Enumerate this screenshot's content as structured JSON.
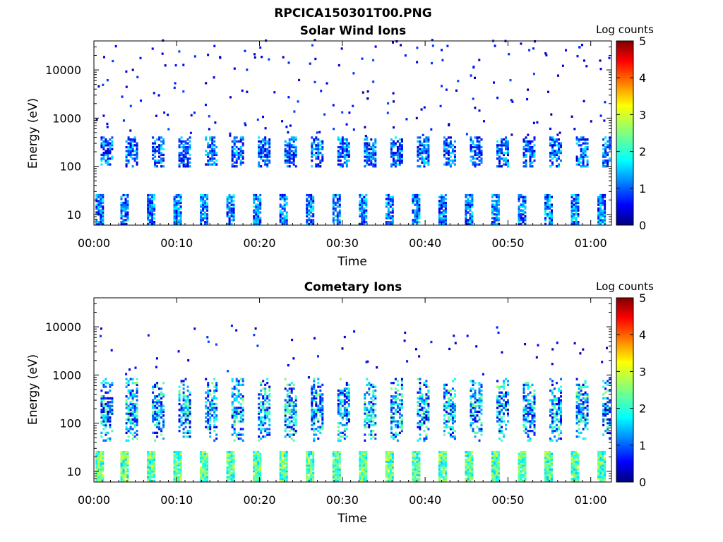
{
  "figure": {
    "title": "RPCICA150301T00.PNG"
  },
  "chart_data": [
    {
      "type": "heatmap",
      "title": "Solar Wind Ions",
      "xlabel": "Time",
      "ylabel": "Energy (eV)",
      "y_scale": "log",
      "ylim": [
        6,
        40000
      ],
      "x_range_minutes": [
        0,
        62.5
      ],
      "x_ticks": [
        "00:00",
        "00:10",
        "00:20",
        "00:30",
        "00:40",
        "00:50",
        "01:00"
      ],
      "y_ticks": [
        "10",
        "100",
        "1000",
        "10000"
      ],
      "colorbar": {
        "label": "Log counts",
        "range": [
          0,
          5
        ],
        "ticks": [
          "0",
          "1",
          "2",
          "3",
          "4",
          "5"
        ]
      },
      "bursts_minutes": [
        0.2,
        3.2,
        6.4,
        9.6,
        12.8,
        16.0,
        19.2,
        22.4,
        25.6,
        28.8,
        32.0,
        35.2,
        38.4,
        41.6,
        44.8,
        48.0,
        51.2,
        54.4,
        57.6,
        60.8
      ],
      "low_energy_band_eV": [
        6,
        25
      ],
      "mid_energy_band_eV": [
        90,
        400
      ],
      "sparse_high_energy_eV": [
        400,
        40000
      ]
    },
    {
      "type": "heatmap",
      "title": "Cometary Ions",
      "xlabel": "Time",
      "ylabel": "Energy (eV)",
      "y_scale": "log",
      "ylim": [
        6,
        40000
      ],
      "x_range_minutes": [
        0,
        62.5
      ],
      "x_ticks": [
        "00:00",
        "00:10",
        "00:20",
        "00:30",
        "00:40",
        "00:50",
        "01:00"
      ],
      "y_ticks": [
        "10",
        "100",
        "1000",
        "10000"
      ],
      "colorbar": {
        "label": "Log counts",
        "range": [
          0,
          5
        ],
        "ticks": [
          "0",
          "1",
          "2",
          "3",
          "4",
          "5"
        ]
      },
      "bursts_minutes": [
        0.2,
        3.2,
        6.4,
        9.6,
        12.8,
        16.0,
        19.2,
        22.4,
        25.6,
        28.8,
        32.0,
        35.2,
        38.4,
        41.6,
        44.8,
        48.0,
        51.2,
        54.4,
        57.6,
        60.8
      ],
      "low_energy_band_eV": [
        6,
        25
      ],
      "mid_energy_band_eV": [
        40,
        800
      ],
      "sparse_high_energy_eV": [
        800,
        10000
      ]
    }
  ]
}
